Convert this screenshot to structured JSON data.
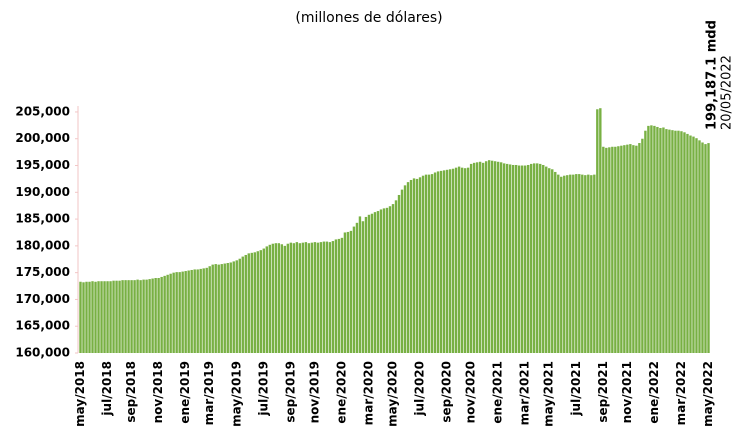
{
  "chart_data": {
    "type": "bar",
    "subtitle": "(millones de dólares)",
    "annotation_value": "199,187.1 mdd",
    "annotation_date": "20/05/2022",
    "color": "#78b043",
    "ylim": [
      160000,
      206000
    ],
    "yticks": [
      {
        "value": 160000,
        "label": "160,000"
      },
      {
        "value": 165000,
        "label": "165,000"
      },
      {
        "value": 170000,
        "label": "170,000"
      },
      {
        "value": 175000,
        "label": "175,000"
      },
      {
        "value": 180000,
        "label": "180,000"
      },
      {
        "value": 185000,
        "label": "185,000"
      },
      {
        "value": 190000,
        "label": "190,000"
      },
      {
        "value": 195000,
        "label": "195,000"
      },
      {
        "value": 200000,
        "label": "200,000"
      },
      {
        "value": 205000,
        "label": "205,000"
      }
    ],
    "categories": [
      "may/2018",
      null,
      null,
      null,
      null,
      null,
      null,
      null,
      null,
      "jul/2018",
      null,
      null,
      null,
      null,
      null,
      null,
      null,
      "sep/2018",
      null,
      null,
      null,
      null,
      null,
      null,
      null,
      null,
      "nov/2018",
      null,
      null,
      null,
      null,
      null,
      null,
      null,
      null,
      "ene/2019",
      null,
      null,
      null,
      null,
      null,
      null,
      null,
      "mar/2019",
      null,
      null,
      null,
      null,
      null,
      null,
      null,
      null,
      "may/2019",
      null,
      null,
      null,
      null,
      null,
      null,
      null,
      null,
      "jul/2019",
      null,
      null,
      null,
      null,
      null,
      null,
      null,
      null,
      "sep/2019",
      null,
      null,
      null,
      null,
      null,
      null,
      null,
      "nov/2019",
      null,
      null,
      null,
      null,
      null,
      null,
      null,
      null,
      "ene/2020",
      null,
      null,
      null,
      null,
      null,
      null,
      null,
      null,
      "mar/2020",
      null,
      null,
      null,
      null,
      null,
      null,
      null,
      "may/2020",
      null,
      null,
      null,
      null,
      null,
      null,
      null,
      null,
      "jul/2020",
      null,
      null,
      null,
      null,
      null,
      null,
      null,
      null,
      "sep/2020",
      null,
      null,
      null,
      null,
      null,
      null,
      null,
      "nov/2020",
      null,
      null,
      null,
      null,
      null,
      null,
      null,
      null,
      "ene/2021",
      null,
      null,
      null,
      null,
      null,
      null,
      null,
      null,
      "mar/2021",
      null,
      null,
      null,
      null,
      null,
      null,
      null,
      "may/2021",
      null,
      null,
      null,
      null,
      null,
      null,
      null,
      null,
      "jul/2021",
      null,
      null,
      null,
      null,
      null,
      null,
      null,
      null,
      "sep/2021",
      null,
      null,
      null,
      null,
      null,
      null,
      null,
      "nov/2021",
      null,
      null,
      null,
      null,
      null,
      null,
      null,
      null,
      "ene/2022",
      null,
      null,
      null,
      null,
      null,
      null,
      null,
      null,
      "mar/2022",
      null,
      null,
      null,
      null,
      null,
      null,
      null,
      null,
      "may/2022"
    ],
    "values": [
      173300,
      173200,
      173300,
      173300,
      173400,
      173300,
      173400,
      173400,
      173400,
      173400,
      173400,
      173500,
      173500,
      173500,
      173600,
      173600,
      173600,
      173600,
      173600,
      173700,
      173600,
      173700,
      173700,
      173800,
      173900,
      174000,
      174000,
      174200,
      174400,
      174600,
      174800,
      175000,
      175100,
      175100,
      175200,
      175300,
      175400,
      175500,
      175600,
      175600,
      175700,
      175800,
      175900,
      176200,
      176500,
      176600,
      176500,
      176600,
      176700,
      176800,
      176900,
      177100,
      177300,
      177600,
      178000,
      178300,
      178600,
      178700,
      178800,
      179000,
      179200,
      179500,
      179900,
      180200,
      180400,
      180500,
      180500,
      180300,
      180000,
      180400,
      180600,
      180500,
      180700,
      180500,
      180600,
      180700,
      180500,
      180600,
      180700,
      180600,
      180700,
      180800,
      180800,
      180700,
      180900,
      181200,
      181300,
      181500,
      182500,
      182600,
      182800,
      183600,
      184300,
      185500,
      184600,
      185400,
      185800,
      186000,
      186300,
      186500,
      186800,
      187000,
      187100,
      187400,
      187800,
      188500,
      189500,
      190500,
      191300,
      191900,
      192300,
      192600,
      192500,
      192800,
      193100,
      193300,
      193300,
      193400,
      193700,
      193900,
      194000,
      194100,
      194200,
      194300,
      194400,
      194600,
      194800,
      194600,
      194500,
      194600,
      195300,
      195500,
      195600,
      195700,
      195500,
      195800,
      196000,
      195900,
      195800,
      195700,
      195600,
      195400,
      195300,
      195200,
      195100,
      195100,
      195000,
      195000,
      195000,
      195100,
      195300,
      195400,
      195400,
      195300,
      195100,
      194800,
      194500,
      194300,
      193800,
      193300,
      192900,
      193100,
      193200,
      193300,
      193300,
      193400,
      193400,
      193300,
      193200,
      193300,
      193200,
      193300,
      205500,
      205700,
      198500,
      198300,
      198400,
      198500,
      198500,
      198600,
      198700,
      198800,
      198900,
      199000,
      198800,
      198700,
      199200,
      200000,
      201500,
      202400,
      202500,
      202400,
      202200,
      202000,
      202100,
      201800,
      201700,
      201600,
      201500,
      201500,
      201400,
      201200,
      200900,
      200600,
      200400,
      200100,
      199700,
      199300,
      199000,
      199187.1
    ]
  }
}
